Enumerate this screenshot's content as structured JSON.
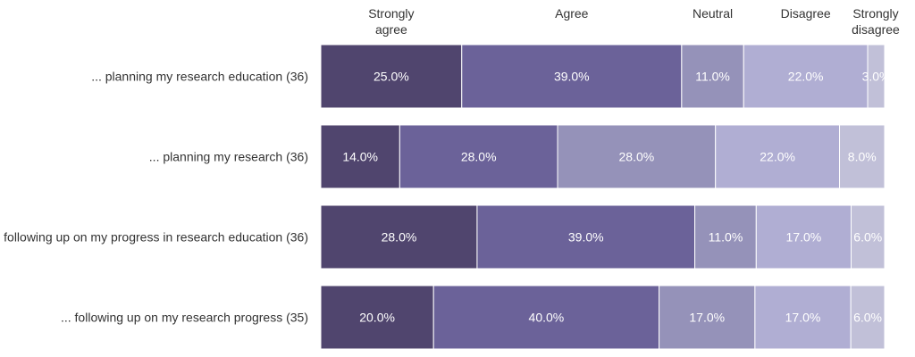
{
  "chart_data": {
    "type": "bar",
    "orientation": "horizontal",
    "stacked": true,
    "categories": [
      "... planning my research education (36)",
      "... planning my research (36)",
      "following up on my progress in research education (36)",
      "... following up on my research progress (35)"
    ],
    "series": [
      {
        "name": "Strongly agree",
        "values": [
          25,
          14,
          28,
          20
        ],
        "labels": [
          "25.0%",
          "14.0%",
          "28.0%",
          "20.0%"
        ]
      },
      {
        "name": "Agree",
        "values": [
          39,
          28,
          39,
          40
        ],
        "labels": [
          "39.0%",
          "28.0%",
          "39.0%",
          "40.0%"
        ]
      },
      {
        "name": "Neutral",
        "values": [
          11,
          28,
          11,
          17
        ],
        "labels": [
          "11.0%",
          "28.0%",
          "11.0%",
          "17.0%"
        ]
      },
      {
        "name": "Disagree",
        "values": [
          22,
          22,
          17,
          17
        ],
        "labels": [
          "22.0%",
          "22.0%",
          "17.0%",
          "17.0%"
        ]
      },
      {
        "name": "Strongly disagree",
        "values": [
          3,
          8,
          6,
          6
        ],
        "labels": [
          "3.0%",
          "8.0%",
          "6.0%",
          "6.0%"
        ]
      }
    ],
    "legend_labels": [
      [
        "Strongly",
        "agree"
      ],
      [
        "Agree"
      ],
      [
        "Neutral"
      ],
      [
        "Disagree"
      ],
      [
        "Strongly",
        "disagree"
      ]
    ],
    "colors": [
      "#50456e",
      "#6b6299",
      "#9592b9",
      "#b0aed3",
      "#c1c0d8"
    ],
    "legend_placement": "top",
    "grid": false
  }
}
